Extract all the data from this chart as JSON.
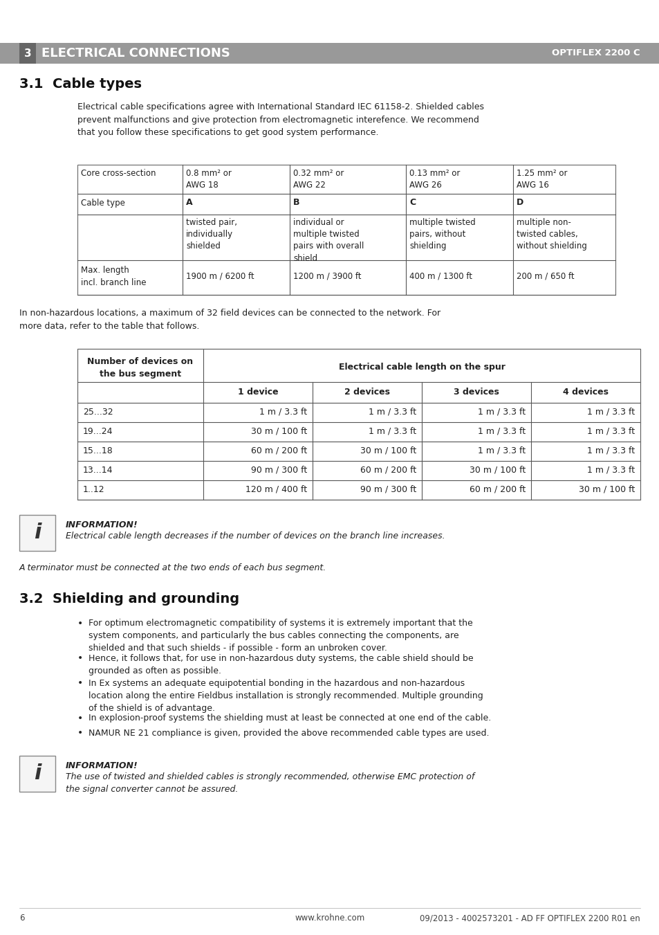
{
  "page_bg": "#ffffff",
  "header_bg": "#999999",
  "header_number_bg": "#666666",
  "body_text_color": "#222222",
  "header_chapter": "3",
  "header_title": "ELECTRICAL CONNECTIONS",
  "header_right": "OPTIFLEX 2200 C",
  "section1_title": "3.1  Cable types",
  "section1_intro": "Electrical cable specifications agree with International Standard IEC 61158-2. Shielded cables\nprevent malfunctions and give protection from electromagnetic interefence. We recommend\nthat you follow these specifications to get good system performance.",
  "table1_col0": "Core cross-section",
  "table1_col_headers": [
    "0.8 mm² or\nAWG 18",
    "0.32 mm² or\nAWG 22",
    "0.13 mm² or\nAWG 26",
    "1.25 mm² or\nAWG 16"
  ],
  "table1_row1_label": "Cable type",
  "table1_row1_vals": [
    "A",
    "B",
    "C",
    "D"
  ],
  "table1_row2_vals": [
    "twisted pair,\nindividually\nshielded",
    "individual or\nmultiple twisted\npairs with overall\nshield",
    "multiple twisted\npairs, without\nshielding",
    "multiple non-\ntwisted cables,\nwithout shielding"
  ],
  "table1_row3_label": "Max. length\nincl. branch line",
  "table1_row3_vals": [
    "1900 m / 6200 ft",
    "1200 m / 3900 ft",
    "400 m / 1300 ft",
    "200 m / 650 ft"
  ],
  "between_text": "In non-hazardous locations, a maximum of 32 field devices can be connected to the network. For\nmore data, refer to the table that follows.",
  "table2_header1": "Number of devices on\nthe bus segment",
  "table2_header2": "Electrical cable length on the spur",
  "table2_subheaders": [
    "1 device",
    "2 devices",
    "3 devices",
    "4 devices"
  ],
  "table2_rows": [
    [
      "25...32",
      "1 m / 3.3 ft",
      "1 m / 3.3 ft",
      "1 m / 3.3 ft",
      "1 m / 3.3 ft"
    ],
    [
      "19...24",
      "30 m / 100 ft",
      "1 m / 3.3 ft",
      "1 m / 3.3 ft",
      "1 m / 3.3 ft"
    ],
    [
      "15...18",
      "60 m / 200 ft",
      "30 m / 100 ft",
      "1 m / 3.3 ft",
      "1 m / 3.3 ft"
    ],
    [
      "13...14",
      "90 m / 300 ft",
      "60 m / 200 ft",
      "30 m / 100 ft",
      "1 m / 3.3 ft"
    ],
    [
      "1..12",
      "120 m / 400 ft",
      "90 m / 300 ft",
      "60 m / 200 ft",
      "30 m / 100 ft"
    ]
  ],
  "info1_title": "INFORMATION!",
  "info1_line1": "Electrical cable length decreases if the number of devices on the branch line increases.",
  "info1_line2": "A terminator must be connected at the two ends of each bus segment.",
  "section2_title": "3.2  Shielding and grounding",
  "section2_bullets": [
    "For optimum electromagnetic compatibility of systems it is extremely important that the\nsystem components, and particularly the bus cables connecting the components, are\nshielded and that such shields - if possible - form an unbroken cover.",
    "Hence, it follows that, for use in non-hazardous duty systems, the cable shield should be\ngrounded as often as possible.",
    "In Ex systems an adequate equipotential bonding in the hazardous and non-hazardous\nlocation along the entire Fieldbus installation is strongly recommended. Multiple grounding\nof the shield is of advantage.",
    "In explosion-proof systems the shielding must at least be connected at one end of the cable.",
    "NAMUR NE 21 compliance is given, provided the above recommended cable types are used."
  ],
  "info2_title": "INFORMATION!",
  "info2_text": "The use of twisted and shielded cables is strongly recommended, otherwise EMC protection of\nthe signal converter cannot be assured.",
  "footer_page": "6",
  "footer_url": "www.krohne.com",
  "footer_right": "09/2013 - 4002573201 - AD FF OPTIFLEX 2200 R01 en"
}
